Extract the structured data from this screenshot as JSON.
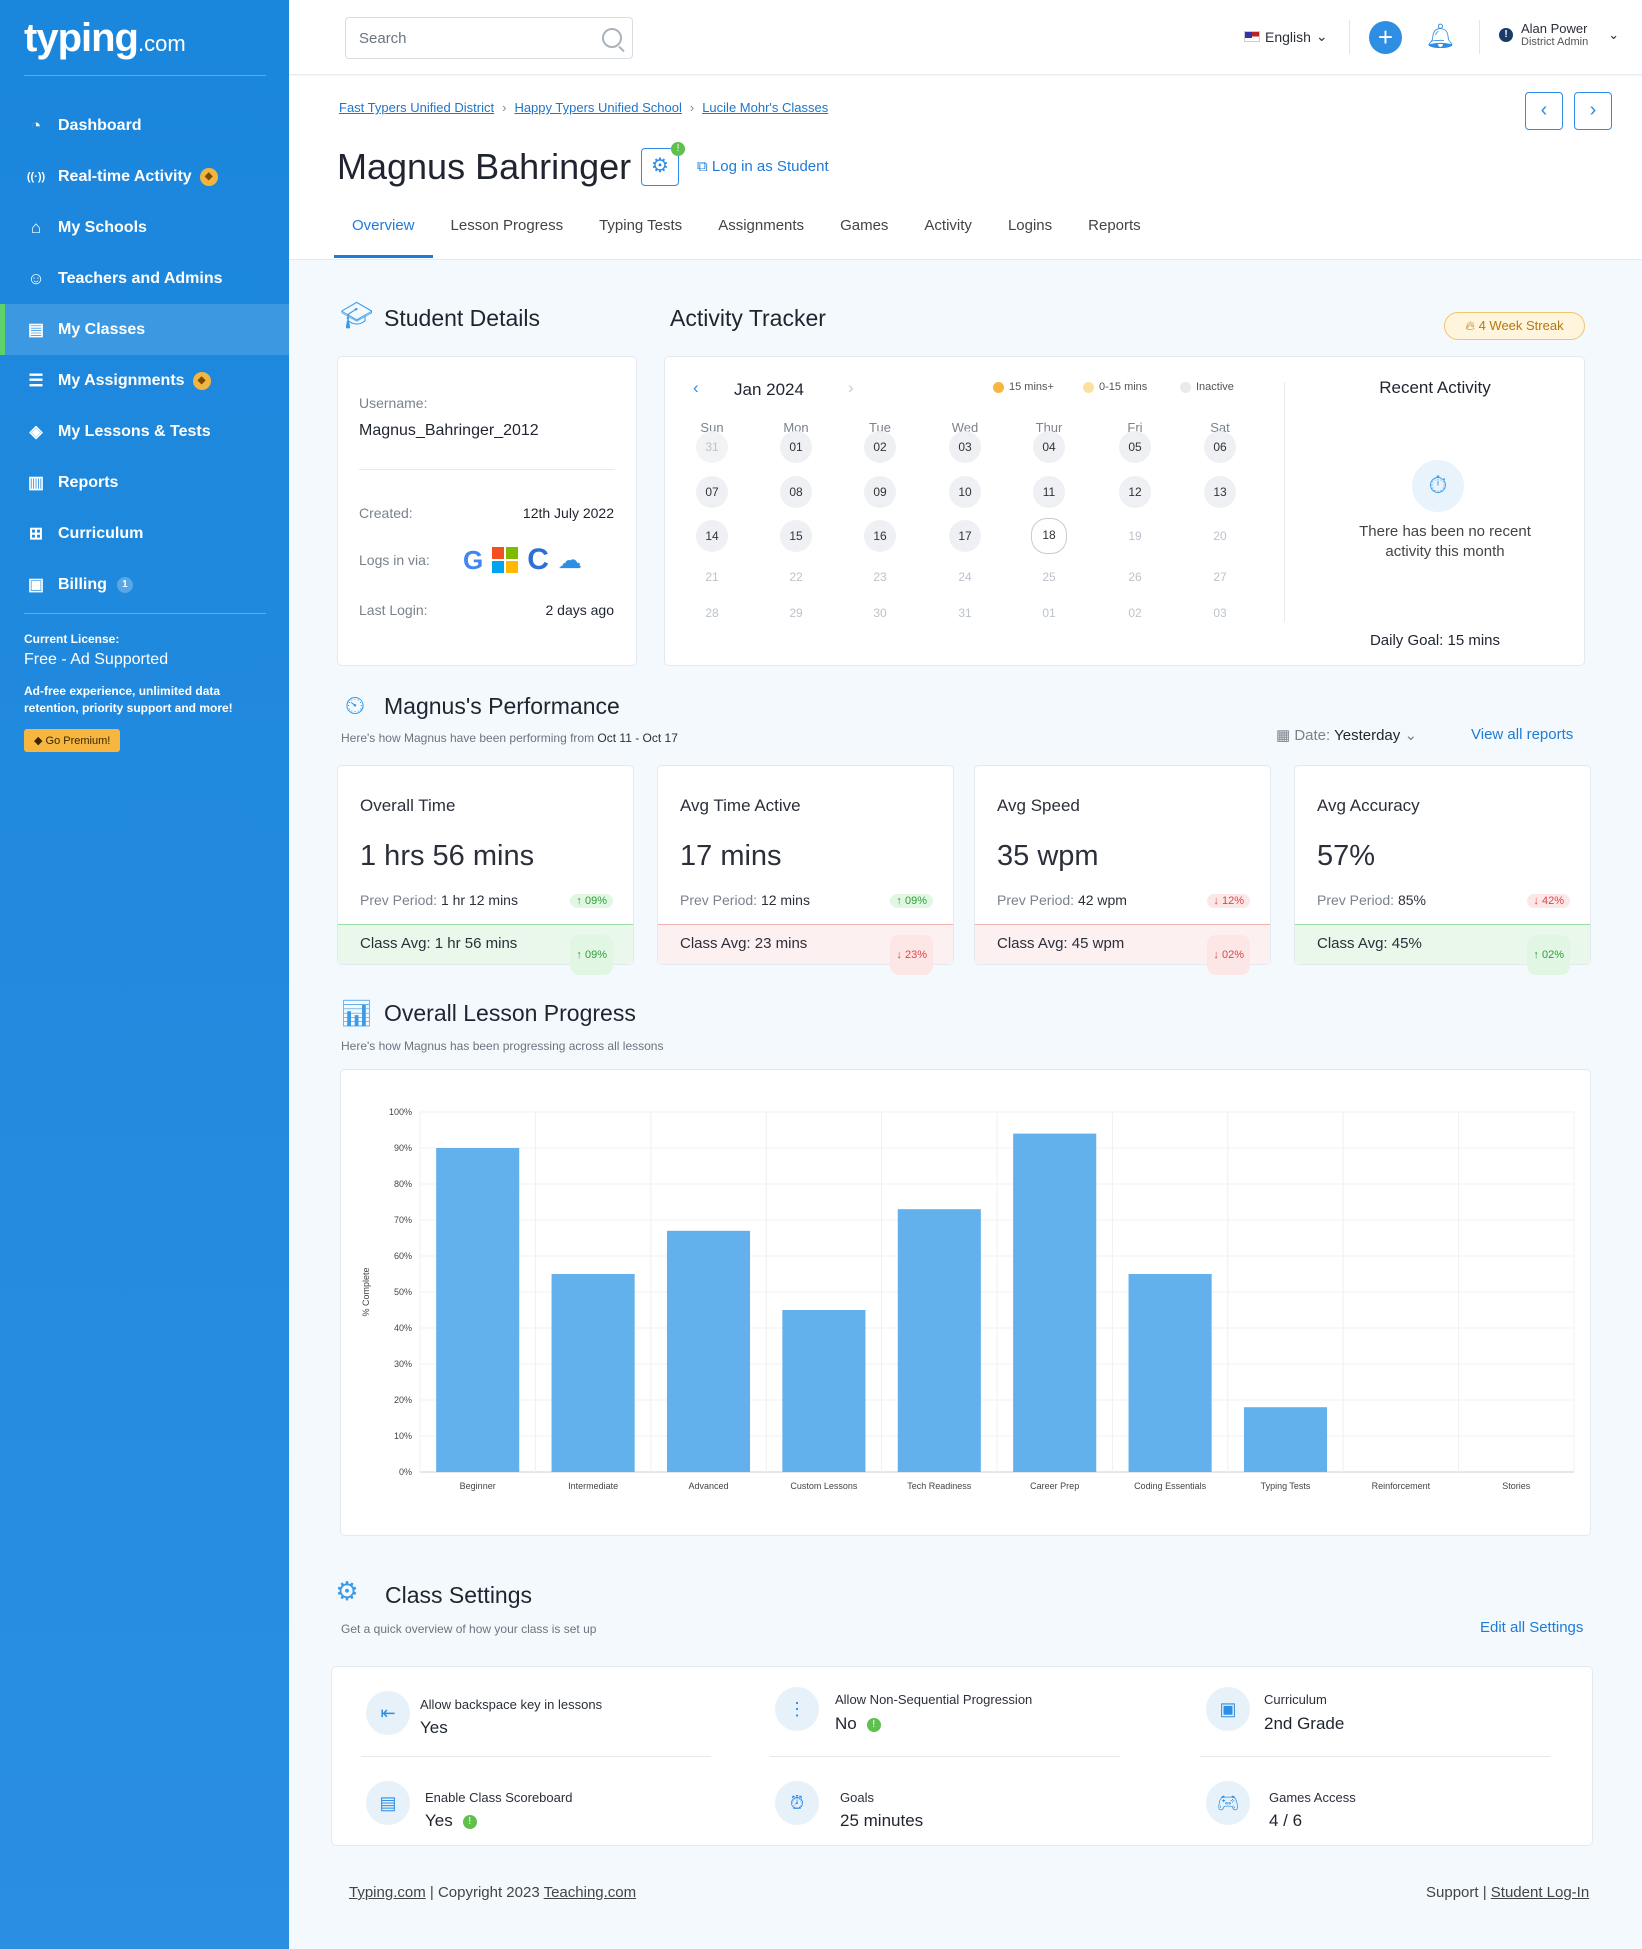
{
  "app": {
    "logo": "typing",
    "logo_suffix": ".com"
  },
  "sidebar": {
    "items": [
      {
        "label": "Dashboard",
        "icon": "dashboard-gauge-icon"
      },
      {
        "label": "Real-time Activity",
        "icon": "broadcast-icon",
        "badge": "premium-gem"
      },
      {
        "label": "My Schools",
        "icon": "school-building-icon"
      },
      {
        "label": "Teachers and Admins",
        "icon": "users-gear-icon"
      },
      {
        "label": "My Classes",
        "icon": "classes-icon",
        "active": true
      },
      {
        "label": "My Assignments",
        "icon": "assignment-icon",
        "badge": "premium-gem"
      },
      {
        "label": "My Lessons & Tests",
        "icon": "lessons-icon"
      },
      {
        "label": "Reports",
        "icon": "bar-chart-icon"
      },
      {
        "label": "Curriculum",
        "icon": "curriculum-board-icon"
      },
      {
        "label": "Billing",
        "icon": "billing-icon",
        "count": "1"
      }
    ],
    "license": {
      "caption": "Current License:",
      "value": "Free - Ad Supported",
      "desc": "Ad-free experience, unlimited data retention, priority support and more!",
      "cta": "Go Premium!"
    }
  },
  "topbar": {
    "search_placeholder": "Search",
    "language": "English",
    "user_name": "Alan Power",
    "user_role": "District Admin"
  },
  "breadcrumbs": [
    "Fast Typers Unified District",
    "Happy Typers Unified School",
    "Lucile Mohr's Classes"
  ],
  "student": {
    "name": "Magnus Bahringer",
    "login_as": "Log in as Student"
  },
  "tabs": [
    "Overview",
    "Lesson Progress",
    "Typing Tests",
    "Assignments",
    "Games",
    "Activity",
    "Logins",
    "Reports"
  ],
  "details": {
    "title": "Student Details",
    "username_label": "Username:",
    "username": "Magnus_Bahringer_2012",
    "created_label": "Created:",
    "created": "12th July 2022",
    "logs_label": "Logs in via:",
    "last_login_label": "Last Login:",
    "last_login": "2 days ago"
  },
  "tracker": {
    "title": "Activity Tracker",
    "streak": "4 Week Streak",
    "month": "Jan 2024",
    "legend": [
      {
        "label": "15 mins+",
        "color": "#f6b640"
      },
      {
        "label": "0-15 mins",
        "color": "#fbe0a0"
      },
      {
        "label": "Inactive",
        "color": "#e8eaed"
      }
    ],
    "dow": [
      "Sun",
      "Mon",
      "Tue",
      "Wed",
      "Thur",
      "Fri",
      "Sat"
    ],
    "weeks": [
      [
        "31",
        "01",
        "02",
        "03",
        "04",
        "05",
        "06"
      ],
      [
        "07",
        "08",
        "09",
        "10",
        "11",
        "12",
        "13"
      ],
      [
        "14",
        "15",
        "16",
        "17",
        "18",
        "19",
        "20"
      ],
      [
        "21",
        "22",
        "23",
        "24",
        "25",
        "26",
        "27"
      ],
      [
        "28",
        "29",
        "30",
        "31",
        "01",
        "02",
        "03"
      ]
    ],
    "recent_title": "Recent Activity",
    "recent_empty": "There has been no recent activity this month",
    "daily_goal": "Daily Goal: 15 mins"
  },
  "performance": {
    "title": "Magnus's Performance",
    "subtitle_prefix": "Here's how Magnus have been performing from ",
    "subtitle_range": "Oct 11 - Oct 17",
    "date_label": "Date:",
    "date_value": "Yesterday",
    "view_all": "View all reports",
    "metrics": [
      {
        "title": "Overall Time",
        "value": "1 hrs 56 mins",
        "prev_label": "Prev Period: ",
        "prev": "1 hr 12 mins",
        "prev_delta": "09%",
        "prev_dir": "up",
        "class_avg": "Class Avg: 1 hr 56 mins",
        "class_delta": "09%",
        "class_dir": "up"
      },
      {
        "title": "Avg Time Active",
        "value": "17 mins",
        "prev_label": "Prev Period: ",
        "prev": "12 mins",
        "prev_delta": "09%",
        "prev_dir": "up",
        "class_avg": "Class Avg: 23 mins",
        "class_delta": "23%",
        "class_dir": "dn"
      },
      {
        "title": "Avg Speed",
        "value": "35 wpm",
        "prev_label": "Prev Period: ",
        "prev": "42 wpm",
        "prev_delta": "12%",
        "prev_dir": "dn",
        "class_avg": "Class Avg: 45 wpm",
        "class_delta": "02%",
        "class_dir": "dn"
      },
      {
        "title": "Avg Accuracy",
        "value": "57%",
        "prev_label": "Prev Period: ",
        "prev": "85%",
        "prev_delta": "42%",
        "prev_dir": "dn",
        "class_avg": "Class Avg: 45%",
        "class_delta": "02%",
        "class_dir": "up"
      }
    ]
  },
  "progress": {
    "title": "Overall Lesson Progress",
    "subtitle": "Here's how Magnus has been progressing across all lessons"
  },
  "chart_data": {
    "type": "bar",
    "categories": [
      "Beginner",
      "Intermediate",
      "Advanced",
      "Custom Lessons",
      "Tech Readiness",
      "Career Prep",
      "Coding Essentials",
      "Typing Tests",
      "Reinforcement",
      "Stories"
    ],
    "values": [
      90,
      55,
      67,
      45,
      73,
      94,
      55,
      18,
      0,
      0
    ],
    "ylabel": "% Complete",
    "ylim": [
      0,
      100
    ],
    "yticks": [
      "0%",
      "10%",
      "20%",
      "30%",
      "40%",
      "50%",
      "60%",
      "70%",
      "80%",
      "90%",
      "100%"
    ],
    "grid": true,
    "bar_color": "#62b1ec"
  },
  "settings": {
    "title": "Class Settings",
    "subtitle": "Get a quick overview of how your class is set up",
    "edit": "Edit all Settings",
    "items": [
      {
        "label": "Allow backspace key in lessons",
        "value": "Yes",
        "icon": "backspace-key-icon",
        "ok": false
      },
      {
        "label": "Allow Non-Sequential Progression",
        "value": "No",
        "icon": "progression-nodes-icon",
        "ok": true
      },
      {
        "label": "Curriculum",
        "value": "2nd Grade",
        "icon": "curriculum-icon",
        "ok": false
      },
      {
        "label": "Enable Class Scoreboard",
        "value": "Yes",
        "icon": "scoreboard-icon",
        "ok": true
      },
      {
        "label": "Goals",
        "value": "25 minutes",
        "icon": "alarm-clock-icon",
        "ok": false
      },
      {
        "label": "Games Access",
        "value": "4 / 6",
        "icon": "gamepad-icon",
        "ok": false
      }
    ]
  },
  "footer": {
    "brand": "Typing.com",
    "copyright": "Copyright 2023",
    "company": "Teaching.com",
    "support": "Support",
    "student_login": "Student Log-In"
  }
}
